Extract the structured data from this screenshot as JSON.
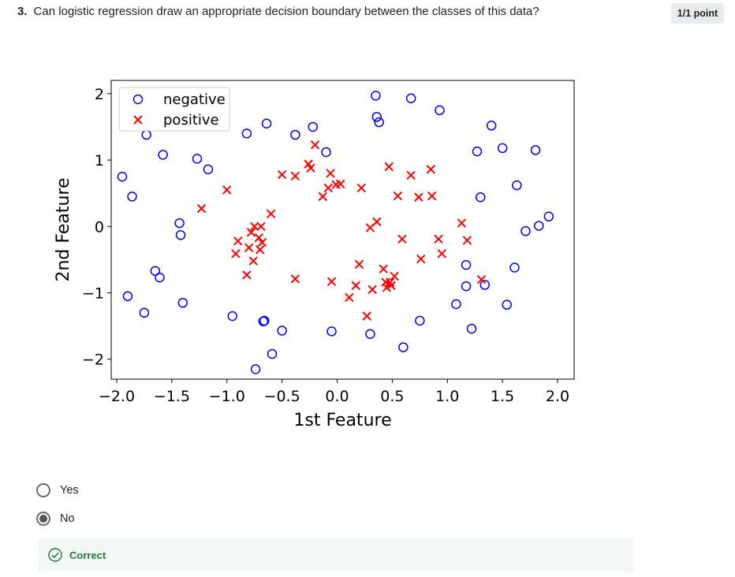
{
  "question": {
    "number": "3.",
    "text": "Can logistic regression draw an appropriate decision boundary between the classes of this data?",
    "points": "1/1 point"
  },
  "chart_data": {
    "type": "scatter",
    "title": "",
    "xlabel": "1st Feature",
    "ylabel": "2nd Feature",
    "xlim": [
      -2.05,
      2.15
    ],
    "ylim": [
      -2.3,
      2.2
    ],
    "xticks": [
      -2.0,
      -1.5,
      -1.0,
      -0.5,
      0.0,
      0.5,
      1.0,
      1.5,
      2.0
    ],
    "xtick_labels": [
      "−2.0",
      "−1.5",
      "−1.0",
      "−0.5",
      "0.0",
      "0.5",
      "1.0",
      "1.5",
      "2.0"
    ],
    "yticks": [
      2,
      1,
      0,
      -1,
      -2
    ],
    "ytick_labels": [
      "2",
      "1",
      "0",
      "−1",
      "−2"
    ],
    "grid": false,
    "legend_position": "top-left",
    "series": [
      {
        "name": "negative",
        "marker": "o",
        "color": "#0000ff",
        "x": [
          -1.95,
          -1.86,
          -1.9,
          -1.75,
          -1.73,
          -1.65,
          -1.61,
          -1.58,
          -1.43,
          -1.42,
          -1.4,
          -1.27,
          -1.17,
          -0.95,
          -0.82,
          -0.74,
          -0.67,
          -0.66,
          -0.64,
          -0.59,
          -0.5,
          -0.38,
          -0.22,
          -0.1,
          -0.05,
          0.3,
          0.35,
          0.36,
          0.38,
          0.6,
          0.67,
          0.75,
          0.93,
          1.08,
          1.17,
          1.17,
          1.22,
          1.27,
          1.3,
          1.34,
          1.4,
          1.5,
          1.54,
          1.61,
          1.63,
          1.71,
          1.8,
          1.83,
          1.92
        ],
        "y": [
          0.75,
          0.45,
          -1.05,
          -1.3,
          1.38,
          -0.67,
          -0.77,
          1.08,
          0.05,
          -0.13,
          -1.15,
          1.02,
          0.86,
          -1.35,
          1.4,
          -2.15,
          -1.43,
          -1.42,
          1.55,
          -1.92,
          -1.57,
          1.38,
          1.5,
          1.12,
          -1.58,
          -1.62,
          1.97,
          1.65,
          1.57,
          -1.82,
          1.93,
          -1.42,
          1.75,
          -1.17,
          -0.58,
          -0.9,
          -1.54,
          1.13,
          0.44,
          -0.88,
          1.52,
          1.18,
          -1.18,
          -0.62,
          0.62,
          -0.07,
          1.15,
          0.01,
          0.15
        ]
      },
      {
        "name": "positive",
        "marker": "x",
        "color": "#ff0000",
        "x": [
          -1.23,
          -1.0,
          -0.92,
          -0.9,
          -0.82,
          -0.8,
          -0.78,
          -0.76,
          -0.75,
          -0.71,
          -0.7,
          -0.69,
          -0.68,
          -0.6,
          -0.5,
          -0.38,
          -0.38,
          -0.26,
          -0.24,
          -0.2,
          -0.13,
          -0.08,
          -0.06,
          -0.05,
          -0.01,
          0.03,
          0.11,
          0.17,
          0.2,
          0.22,
          0.27,
          0.3,
          0.32,
          0.36,
          0.42,
          0.44,
          0.45,
          0.47,
          0.48,
          0.49,
          0.52,
          0.55,
          0.59,
          0.67,
          0.74,
          0.76,
          0.85,
          0.86,
          0.92,
          0.95,
          1.13,
          1.18,
          1.31
        ],
        "y": [
          0.27,
          0.55,
          -0.41,
          -0.22,
          -0.73,
          -0.32,
          -0.09,
          -0.52,
          0.0,
          -0.17,
          -0.35,
          0.0,
          -0.24,
          0.19,
          0.78,
          0.76,
          -0.79,
          0.94,
          0.88,
          1.23,
          0.45,
          0.58,
          0.8,
          -0.83,
          0.63,
          0.64,
          -1.07,
          -0.89,
          -0.57,
          0.58,
          -1.35,
          -0.02,
          -0.95,
          0.07,
          -0.64,
          -0.84,
          -0.92,
          0.9,
          -0.84,
          -0.89,
          -0.75,
          0.46,
          -0.19,
          0.77,
          0.44,
          -0.49,
          0.86,
          0.46,
          -0.19,
          -0.41,
          0.05,
          -0.21,
          -0.8
        ]
      }
    ]
  },
  "options": [
    {
      "label": "Yes",
      "selected": false
    },
    {
      "label": "No",
      "selected": true
    }
  ],
  "feedback": {
    "label": "Correct"
  }
}
